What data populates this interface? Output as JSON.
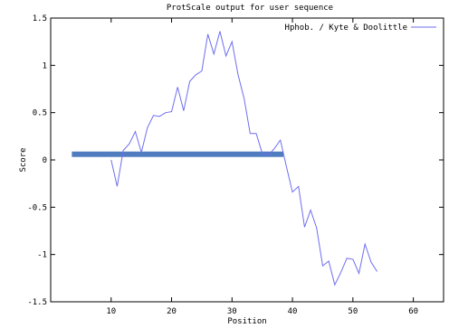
{
  "chart_data": {
    "type": "line",
    "title": "ProtScale output for user sequence",
    "xlabel": "Position",
    "ylabel": "Score",
    "xlim": [
      0,
      65
    ],
    "ylim": [
      -1.5,
      1.5
    ],
    "x_ticks": [
      10,
      20,
      30,
      40,
      50,
      60
    ],
    "y_ticks": [
      -1.5,
      -1,
      -0.5,
      0,
      0.5,
      1,
      1.5
    ],
    "x_tick_labels": [
      "10",
      "20",
      "30",
      "40",
      "50",
      "60"
    ],
    "y_tick_labels": [
      "-1.5",
      "-1",
      "-0.5",
      "0",
      "0.5",
      "1",
      "1.5"
    ],
    "grid": false,
    "legend_position": "top-right",
    "series": [
      {
        "name": "Hphob. / Kyte & Doolittle",
        "color": "#6e6ef0",
        "x": [
          10,
          11,
          12,
          13,
          14,
          15,
          16,
          17,
          18,
          19,
          20,
          21,
          22,
          23,
          24,
          25,
          26,
          27,
          28,
          29,
          30,
          31,
          32,
          33,
          34,
          35,
          36,
          37,
          38,
          39,
          40,
          41,
          42,
          43,
          44,
          45,
          46,
          47,
          48,
          49,
          50,
          51,
          52,
          53,
          54
        ],
        "y": [
          0.0,
          -0.28,
          0.1,
          0.17,
          0.3,
          0.08,
          0.34,
          0.47,
          0.46,
          0.5,
          0.51,
          0.77,
          0.52,
          0.83,
          0.9,
          0.94,
          1.33,
          1.12,
          1.36,
          1.1,
          1.25,
          0.9,
          0.65,
          0.28,
          0.28,
          0.07,
          0.05,
          0.12,
          0.21,
          -0.07,
          -0.34,
          -0.28,
          -0.71,
          -0.53,
          -0.72,
          -1.12,
          -1.07,
          -1.32,
          -1.19,
          -1.04,
          -1.05,
          -1.2,
          -0.89,
          -1.08,
          -1.18
        ]
      }
    ],
    "annotations": [
      {
        "type": "horizontal-bar",
        "x_start": 3.5,
        "x_end": 38.5,
        "y": 0.06,
        "color": "#4f7dbf"
      }
    ]
  }
}
